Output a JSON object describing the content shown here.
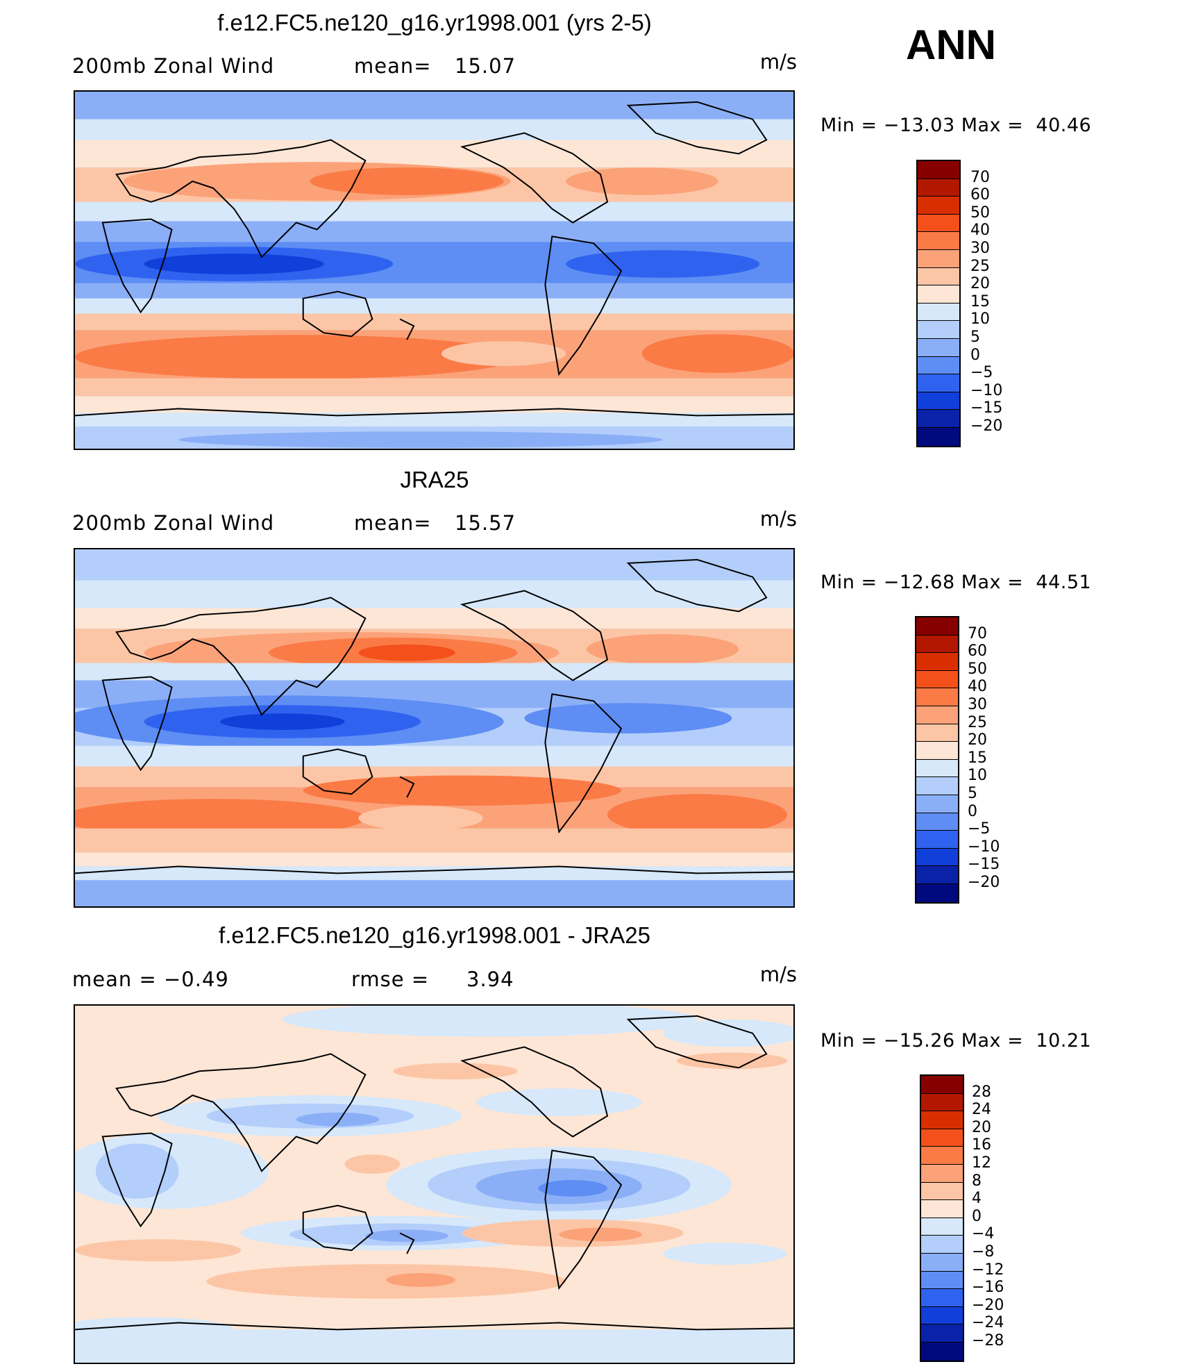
{
  "season": "ANN",
  "panels": [
    {
      "title": "f.e12.FC5.ne120_g16.yr1998.001 (yrs 2-5)",
      "left_text": "200mb Zonal Wind",
      "mid_label": "mean=",
      "mid_value": "15.07",
      "units": "m/s",
      "minmax": "Min = −13.03 Max =  40.46",
      "colorbar_labels": [
        "70",
        "60",
        "50",
        "40",
        "30",
        "25",
        "20",
        "15",
        "10",
        "5",
        "0",
        "−5",
        "−10",
        "−15",
        "−20"
      ]
    },
    {
      "title": "JRA25",
      "left_text": "200mb Zonal Wind",
      "mid_label": "mean=",
      "mid_value": "15.57",
      "units": "m/s",
      "minmax": "Min = −12.68 Max =  44.51",
      "colorbar_labels": [
        "70",
        "60",
        "50",
        "40",
        "30",
        "25",
        "20",
        "15",
        "10",
        "5",
        "0",
        "−5",
        "−10",
        "−15",
        "−20"
      ]
    },
    {
      "title": "f.e12.FC5.ne120_g16.yr1998.001 - JRA25",
      "left_text": "mean =   −0.49",
      "mid_label": "rmse =",
      "mid_value": "3.94",
      "units": "m/s",
      "minmax": "Min = −15.26 Max =  10.21",
      "colorbar_labels": [
        "28",
        "24",
        "20",
        "16",
        "12",
        "8",
        "4",
        "0",
        "−4",
        "−8",
        "−12",
        "−16",
        "−20",
        "−24",
        "−28"
      ]
    }
  ],
  "colorbar_colors": [
    "#870000",
    "#b21800",
    "#d92f00",
    "#f4501c",
    "#fa7b46",
    "#fba279",
    "#fcc6a6",
    "#fde6d6",
    "#d6e8fa",
    "#b3cefa",
    "#8baff7",
    "#5e8df4",
    "#2f63ef",
    "#113fd9",
    "#0a22a8",
    "#000a7e"
  ]
}
